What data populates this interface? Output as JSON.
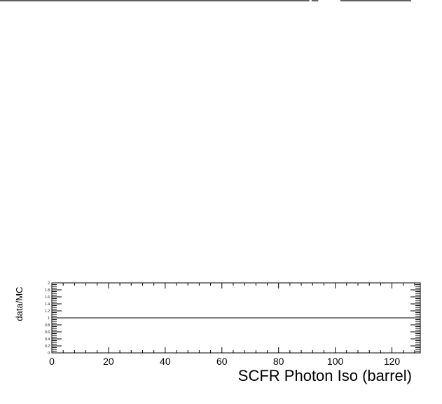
{
  "top_lines": [
    {
      "from": 0,
      "to": 0.7
    },
    {
      "from": 0.705,
      "to": 0.72
    },
    {
      "from": 0.77,
      "to": 0.93
    }
  ],
  "chart_data": {
    "type": "line",
    "xlabel": "SCFR Photon Iso (barrel)",
    "ylabel": "data/MC",
    "xlim": [
      0,
      130
    ],
    "ylim": [
      0,
      2
    ],
    "x_major_ticks": [
      0,
      20,
      40,
      60,
      80,
      100,
      120
    ],
    "x_tick_labels": [
      "0",
      "20",
      "40",
      "60",
      "80",
      "100",
      "120"
    ],
    "y_major_ticks": [
      0,
      0.2,
      0.4,
      0.6,
      0.8,
      1,
      1.2,
      1.4,
      1.6,
      1.8,
      2
    ],
    "y_tick_labels": [
      "0",
      "0.2",
      "0.4",
      "0.6",
      "0.8",
      "1",
      "1.2",
      "1.4",
      "1.6",
      "1.8",
      "2"
    ],
    "series": [
      {
        "x": [
          0,
          130
        ],
        "y": [
          1,
          1
        ]
      }
    ],
    "grid": false,
    "legend": "none"
  }
}
